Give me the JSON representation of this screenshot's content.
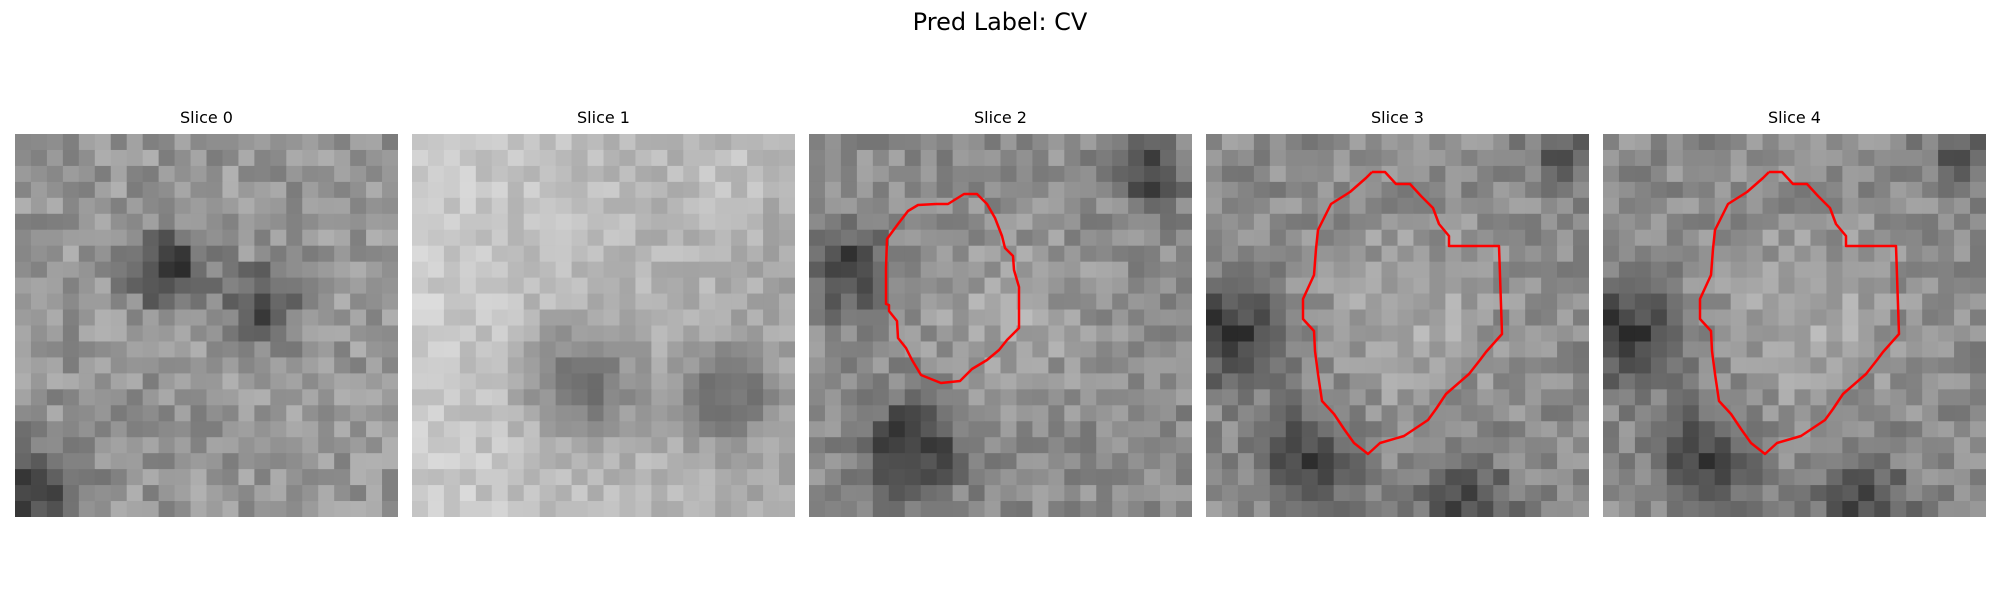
{
  "figure": {
    "title": "Pred Label: CV"
  },
  "panels": [
    {
      "title": "Slice 0",
      "has_contour": false
    },
    {
      "title": "Slice 1",
      "has_contour": false
    },
    {
      "title": "Slice 2",
      "has_contour": true
    },
    {
      "title": "Slice 3",
      "has_contour": true
    },
    {
      "title": "Slice 4",
      "has_contour": true
    }
  ],
  "colors": {
    "contour": "#ff0000",
    "background": "#ffffff"
  }
}
